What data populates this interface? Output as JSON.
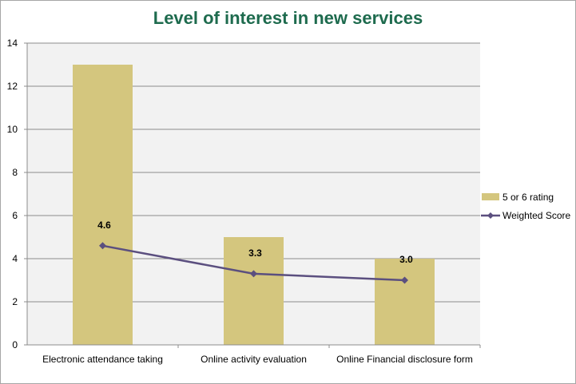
{
  "chart_data": {
    "type": "bar",
    "title": "Level of interest in new services",
    "categories": [
      "Electronic attendance taking",
      "Online activity evaluation",
      "Online Financial disclosure form"
    ],
    "series": [
      {
        "name": "5 or 6 rating",
        "type": "bar",
        "values": [
          13,
          5,
          4
        ],
        "color": "#d4c67e"
      },
      {
        "name": "Weighted Score",
        "type": "line",
        "values": [
          4.6,
          3.3,
          3.0
        ],
        "labels": [
          "4.6",
          "3.3",
          "3.0"
        ],
        "color": "#5b4f7f"
      }
    ],
    "ylim": [
      0,
      14
    ],
    "yticks": [
      0,
      2,
      4,
      6,
      8,
      10,
      12,
      14
    ],
    "grid": true,
    "legend_position": "right",
    "plot_background": "#f2f2f2",
    "gridline_color": "#8c8c8c"
  }
}
